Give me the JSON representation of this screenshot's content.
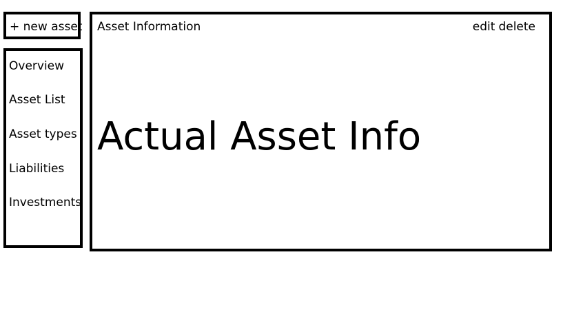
{
  "new_asset": {
    "label": "+ new asset"
  },
  "sidebar": {
    "items": [
      {
        "label": "Overview"
      },
      {
        "label": "Asset List"
      },
      {
        "label": "Asset types"
      },
      {
        "label": "Liabilities"
      },
      {
        "label": "Investments"
      }
    ]
  },
  "panel": {
    "title": "Asset Information",
    "actions": {
      "edit_label": "edit",
      "delete_label": "delete"
    },
    "body_text": "Actual Asset Info"
  }
}
